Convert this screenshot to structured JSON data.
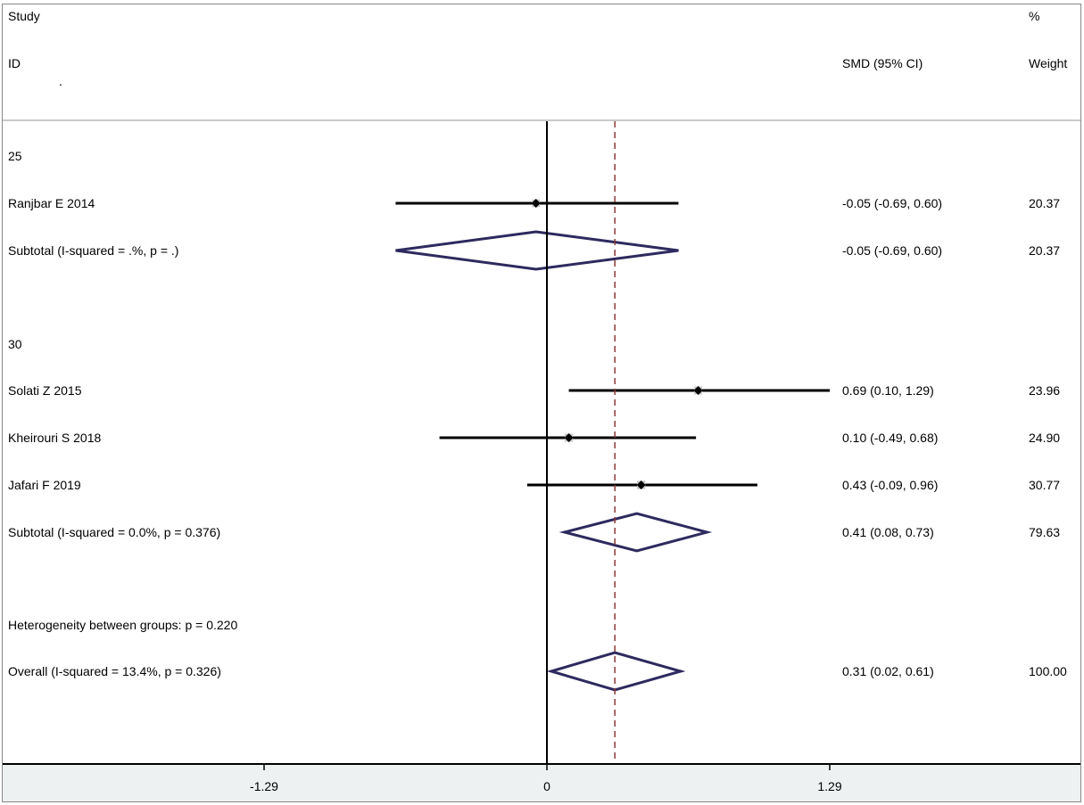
{
  "header": {
    "study_line1": "Study",
    "study_line2": "ID",
    "dot": ".",
    "effect_header": "SMD (95% CI)",
    "weight_line1": "%",
    "weight_line2": "Weight"
  },
  "rows": [
    {
      "kind": "group",
      "label": "25"
    },
    {
      "kind": "study",
      "label": "Ranjbar E 2014",
      "est": -0.05,
      "lo": -0.69,
      "hi": 0.6,
      "ci_text": "-0.05 (-0.69, 0.60)",
      "weight": "20.37"
    },
    {
      "kind": "subtotal",
      "label": "Subtotal  (I-squared = .%, p = .)",
      "est": -0.05,
      "lo": -0.69,
      "hi": 0.6,
      "ci_text": "-0.05 (-0.69, 0.60)",
      "weight": "20.37"
    },
    {
      "kind": "blank"
    },
    {
      "kind": "group",
      "label": "30"
    },
    {
      "kind": "study",
      "label": "Solati Z 2015",
      "est": 0.69,
      "lo": 0.1,
      "hi": 1.29,
      "ci_text": "0.69 (0.10, 1.29)",
      "weight": "23.96"
    },
    {
      "kind": "study",
      "label": "Kheirouri S 2018",
      "est": 0.1,
      "lo": -0.49,
      "hi": 0.68,
      "ci_text": "0.10 (-0.49, 0.68)",
      "weight": "24.90"
    },
    {
      "kind": "study",
      "label": "Jafari F 2019",
      "est": 0.43,
      "lo": -0.09,
      "hi": 0.96,
      "ci_text": "0.43 (-0.09, 0.96)",
      "weight": "30.77"
    },
    {
      "kind": "subtotal",
      "label": "Subtotal  (I-squared = 0.0%, p = 0.376)",
      "est": 0.41,
      "lo": 0.08,
      "hi": 0.73,
      "ci_text": "0.41 (0.08, 0.73)",
      "weight": "79.63"
    },
    {
      "kind": "blank"
    },
    {
      "kind": "note",
      "label": "Heterogeneity between groups: p = 0.220"
    },
    {
      "kind": "overall",
      "label": "Overall  (I-squared = 13.4%, p = 0.326)",
      "est": 0.31,
      "lo": 0.02,
      "hi": 0.61,
      "ci_text": "0.31 (0.02, 0.61)",
      "weight": "100.00"
    }
  ],
  "chart_data": {
    "type": "forest",
    "effect_measure": "SMD (95% CI)",
    "xticks": [
      -1.29,
      0,
      1.29
    ],
    "xtick_labels": [
      "-1.29",
      "0",
      "1.29"
    ],
    "xlim": [
      -1.29,
      1.29
    ],
    "null_line": 0,
    "overall_line": 0.31,
    "series": [
      {
        "name": "25",
        "studies": [
          {
            "label": "Ranjbar E 2014",
            "est": -0.05,
            "lo": -0.69,
            "hi": 0.6,
            "weight": 20.37
          }
        ],
        "subtotal": {
          "est": -0.05,
          "lo": -0.69,
          "hi": 0.6,
          "weight": 20.37
        }
      },
      {
        "name": "30",
        "studies": [
          {
            "label": "Solati Z 2015",
            "est": 0.69,
            "lo": 0.1,
            "hi": 1.29,
            "weight": 23.96
          },
          {
            "label": "Kheirouri S 2018",
            "est": 0.1,
            "lo": -0.49,
            "hi": 0.68,
            "weight": 24.9
          },
          {
            "label": "Jafari F 2019",
            "est": 0.43,
            "lo": -0.09,
            "hi": 0.96,
            "weight": 30.77
          }
        ],
        "subtotal": {
          "est": 0.41,
          "lo": 0.08,
          "hi": 0.73,
          "weight": 79.63
        }
      }
    ],
    "overall": {
      "est": 0.31,
      "lo": 0.02,
      "hi": 0.61,
      "weight": 100.0
    },
    "colors": {
      "diamond": "#2d2a5e",
      "overall_line": "#8b3a3a",
      "axis_band": "#eef1f1",
      "weight_box": "#c8c8c8"
    }
  }
}
